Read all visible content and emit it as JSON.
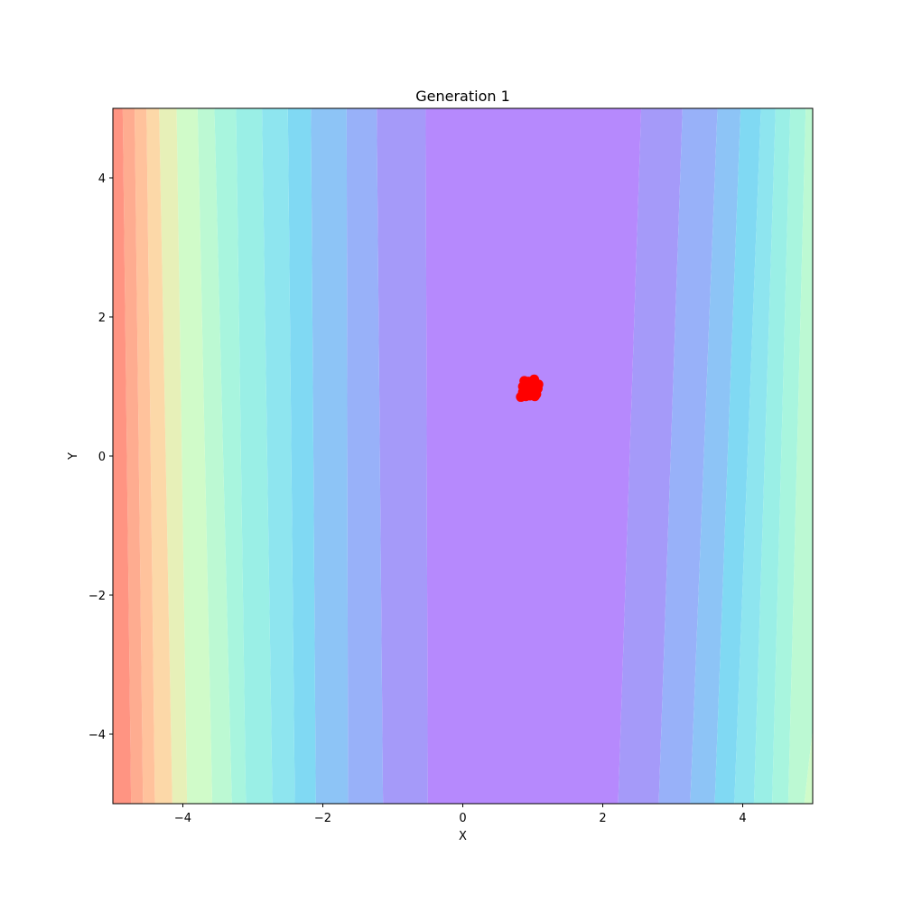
{
  "chart_data": {
    "type": "scatter",
    "title": "Generation 1",
    "xlabel": "X",
    "ylabel": "Y",
    "xlim": [
      -5,
      5
    ],
    "ylim": [
      -5,
      5
    ],
    "grid": false,
    "xticks": [
      -4,
      -2,
      0,
      2,
      4
    ],
    "yticks": [
      -4,
      -2,
      0,
      2,
      4
    ],
    "xtick_labels": [
      "−4",
      "−2",
      "0",
      "2",
      "4"
    ],
    "ytick_labels": [
      "−4",
      "−2",
      "0",
      "2",
      "4"
    ],
    "background": {
      "kind": "filled-contour",
      "colormap": "rainbow",
      "band_colors": [
        "#b689fd",
        "#a59af9",
        "#98b1f9",
        "#8dc4f6",
        "#80d9f3",
        "#8ee5ef",
        "#9aefe6",
        "#a8f5de",
        "#bcf9d3",
        "#d0fbc9",
        "#e7f0b8",
        "#fcd8a8",
        "#ffc29c",
        "#feac90",
        "#ff9482"
      ],
      "right_band_colors": [
        "#b689fd",
        "#a59af9",
        "#98b1f9",
        "#8dc4f6",
        "#80d9f3",
        "#8ee5ef",
        "#9aefe6",
        "#a8f5de",
        "#bcf9d3",
        "#d0fbc9"
      ]
    },
    "series": [
      {
        "color": "#ff0000",
        "marker": "circle",
        "points": [
          [
            0.88,
            1.08
          ],
          [
            0.92,
            1.02
          ],
          [
            0.97,
            1.05
          ],
          [
            1.02,
            1.1
          ],
          [
            1.05,
            1.01
          ],
          [
            0.95,
            0.95
          ],
          [
            1.0,
            0.9
          ],
          [
            0.86,
            0.92
          ],
          [
            0.83,
            0.85
          ],
          [
            0.9,
            0.86
          ],
          [
            1.04,
            0.93
          ],
          [
            0.98,
            0.99
          ],
          [
            0.93,
            0.89
          ],
          [
            1.07,
            0.97
          ],
          [
            0.89,
            0.98
          ],
          [
            1.01,
            1.04
          ],
          [
            0.96,
            0.87
          ],
          [
            0.86,
            1.0
          ],
          [
            1.03,
            0.86
          ],
          [
            0.94,
            1.07
          ],
          [
            1.08,
            1.03
          ],
          [
            0.91,
            0.94
          ],
          [
            0.99,
            0.95
          ],
          [
            0.87,
            0.89
          ],
          [
            1.05,
            0.89
          ]
        ]
      }
    ]
  }
}
